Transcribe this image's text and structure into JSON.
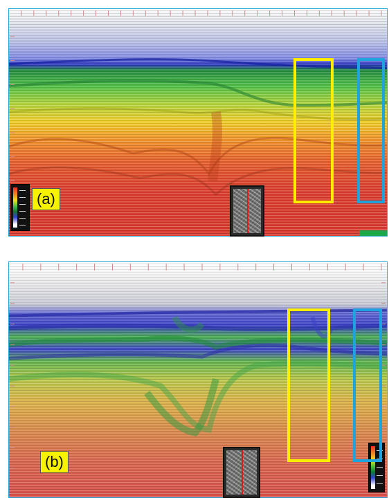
{
  "figure": {
    "panels": [
      {
        "id": "a",
        "label": "(a)"
      },
      {
        "id": "b",
        "label": "(b)"
      }
    ],
    "colors": {
      "highlight_box_1": "#ffee00",
      "highlight_box_2": "#1ea3df",
      "label_background": "#f7f200",
      "panel_border": "#28a8d8",
      "well_marker": "#e01818"
    }
  }
}
